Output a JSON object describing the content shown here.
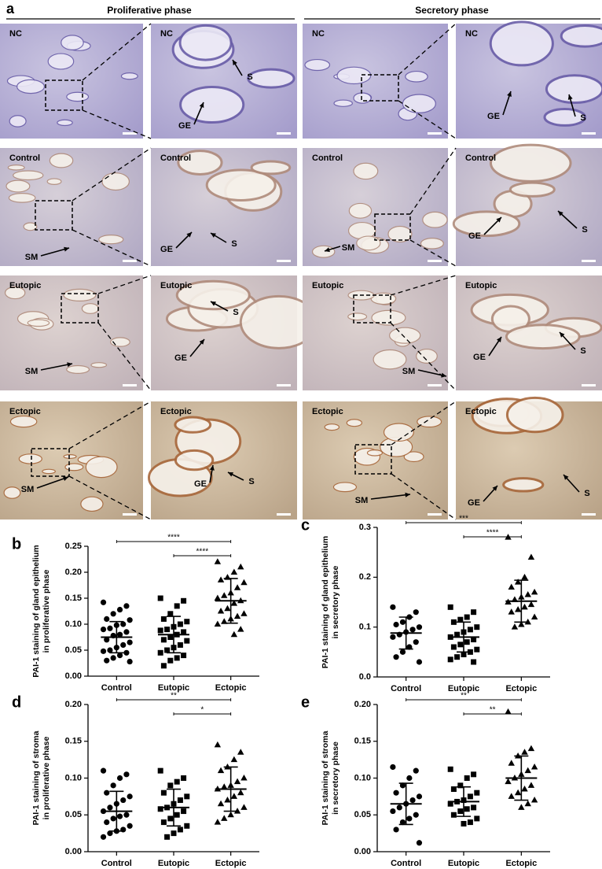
{
  "panel_a": {
    "label": "a",
    "phases": [
      "Proliferative phase",
      "Secretory phase"
    ],
    "rows": [
      "NC",
      "Control",
      "Eutopic",
      "Ectopic"
    ],
    "annotations": [
      "GE",
      "S",
      "SM"
    ]
  },
  "chart_data": [
    {
      "type": "dot",
      "panel": "b",
      "ylabel": [
        "PAI-1 staining of gland epithelium",
        "in proliferative phase"
      ],
      "categories": [
        "Control",
        "Eutopic",
        "Ectopic"
      ],
      "markers": [
        "circle",
        "square",
        "triangle"
      ],
      "color": "#000000",
      "points": [
        [
          0.142,
          0.135,
          0.128,
          0.12,
          0.11,
          0.108,
          0.1,
          0.098,
          0.092,
          0.09,
          0.085,
          0.08,
          0.078,
          0.07,
          0.065,
          0.06,
          0.055,
          0.05,
          0.048,
          0.045,
          0.04,
          0.035,
          0.03,
          0.028
        ],
        [
          0.15,
          0.145,
          0.135,
          0.12,
          0.11,
          0.105,
          0.1,
          0.095,
          0.09,
          0.088,
          0.085,
          0.08,
          0.075,
          0.07,
          0.068,
          0.06,
          0.055,
          0.05,
          0.045,
          0.04,
          0.035,
          0.03,
          0.02
        ],
        [
          0.22,
          0.21,
          0.2,
          0.19,
          0.185,
          0.18,
          0.17,
          0.16,
          0.155,
          0.15,
          0.145,
          0.14,
          0.13,
          0.125,
          0.12,
          0.115,
          0.11,
          0.105,
          0.1,
          0.09,
          0.08
        ]
      ],
      "means": [
        0.075,
        0.08,
        0.145
      ],
      "sds": [
        0.03,
        0.035,
        0.043
      ],
      "significance": [
        {
          "groups": [
            0,
            2
          ],
          "label": "****"
        },
        {
          "groups": [
            1,
            2
          ],
          "label": "****"
        }
      ],
      "ylim": [
        0,
        0.25
      ],
      "yticks": [
        {
          "value": 0,
          "label": "0.00"
        },
        {
          "value": 0.05,
          "label": "0.05"
        },
        {
          "value": 0.1,
          "label": "0.10"
        },
        {
          "value": 0.15,
          "label": "0.15"
        },
        {
          "value": 0.2,
          "label": "0.20"
        },
        {
          "value": 0.25,
          "label": "0.25"
        }
      ]
    },
    {
      "type": "dot",
      "panel": "c",
      "ylabel": [
        "PAI-1 staining of gland epithelium",
        "in secretory phase"
      ],
      "categories": [
        "Control",
        "Eutopic",
        "Ectopic"
      ],
      "markers": [
        "circle",
        "square",
        "triangle"
      ],
      "color": "#000000",
      "points": [
        [
          0.14,
          0.13,
          0.12,
          0.11,
          0.105,
          0.1,
          0.095,
          0.09,
          0.085,
          0.08,
          0.07,
          0.06,
          0.05,
          0.04,
          0.03
        ],
        [
          0.14,
          0.13,
          0.12,
          0.115,
          0.11,
          0.1,
          0.095,
          0.09,
          0.085,
          0.08,
          0.075,
          0.07,
          0.065,
          0.06,
          0.055,
          0.05,
          0.045,
          0.04,
          0.035,
          0.03
        ],
        [
          0.28,
          0.24,
          0.2,
          0.19,
          0.18,
          0.17,
          0.165,
          0.16,
          0.155,
          0.15,
          0.145,
          0.14,
          0.135,
          0.13,
          0.12,
          0.11,
          0.105,
          0.1
        ]
      ],
      "means": [
        0.088,
        0.08,
        0.152
      ],
      "sds": [
        0.032,
        0.03,
        0.042
      ],
      "significance": [
        {
          "groups": [
            0,
            2
          ],
          "label": "***"
        },
        {
          "groups": [
            1,
            2
          ],
          "label": "****"
        }
      ],
      "ylim": [
        0,
        0.3
      ],
      "yticks": [
        {
          "value": 0,
          "label": "0.0"
        },
        {
          "value": 0.1,
          "label": "0.1"
        },
        {
          "value": 0.2,
          "label": "0.2"
        },
        {
          "value": 0.3,
          "label": "0.3"
        }
      ]
    },
    {
      "type": "dot",
      "panel": "d",
      "ylabel": [
        "PAI-1 staining of stroma",
        "in proliferative phase"
      ],
      "categories": [
        "Control",
        "Eutopic",
        "Ectopic"
      ],
      "markers": [
        "circle",
        "square",
        "triangle"
      ],
      "color": "#000000",
      "points": [
        [
          0.11,
          0.105,
          0.1,
          0.09,
          0.08,
          0.075,
          0.07,
          0.065,
          0.06,
          0.055,
          0.05,
          0.048,
          0.045,
          0.04,
          0.035,
          0.03,
          0.028,
          0.025,
          0.02
        ],
        [
          0.11,
          0.1,
          0.095,
          0.09,
          0.08,
          0.075,
          0.07,
          0.065,
          0.06,
          0.058,
          0.055,
          0.05,
          0.045,
          0.04,
          0.035,
          0.03,
          0.025,
          0.02
        ],
        [
          0.145,
          0.135,
          0.125,
          0.115,
          0.11,
          0.1,
          0.095,
          0.09,
          0.088,
          0.085,
          0.08,
          0.075,
          0.07,
          0.065,
          0.06,
          0.055,
          0.05,
          0.045,
          0.04
        ]
      ],
      "means": [
        0.055,
        0.06,
        0.085
      ],
      "sds": [
        0.027,
        0.025,
        0.03
      ],
      "significance": [
        {
          "groups": [
            0,
            2
          ],
          "label": "**"
        },
        {
          "groups": [
            1,
            2
          ],
          "label": "*"
        }
      ],
      "ylim": [
        0,
        0.2
      ],
      "yticks": [
        {
          "value": 0,
          "label": "0.00"
        },
        {
          "value": 0.05,
          "label": "0.05"
        },
        {
          "value": 0.1,
          "label": "0.10"
        },
        {
          "value": 0.15,
          "label": "0.15"
        },
        {
          "value": 0.2,
          "label": "0.20"
        }
      ]
    },
    {
      "type": "dot",
      "panel": "e",
      "ylabel": [
        "PAI-1 staining of stroma",
        "in secretory phase"
      ],
      "categories": [
        "Control",
        "Eutopic",
        "Ectopic"
      ],
      "markers": [
        "circle",
        "square",
        "triangle"
      ],
      "color": "#000000",
      "points": [
        [
          0.115,
          0.11,
          0.1,
          0.09,
          0.08,
          0.075,
          0.07,
          0.065,
          0.06,
          0.055,
          0.05,
          0.045,
          0.04,
          0.03,
          0.012
        ],
        [
          0.112,
          0.105,
          0.1,
          0.09,
          0.085,
          0.08,
          0.075,
          0.07,
          0.068,
          0.065,
          0.06,
          0.058,
          0.055,
          0.05,
          0.045,
          0.04,
          0.038
        ],
        [
          0.19,
          0.14,
          0.135,
          0.13,
          0.12,
          0.115,
          0.11,
          0.105,
          0.1,
          0.095,
          0.09,
          0.085,
          0.08,
          0.075,
          0.07,
          0.065,
          0.06
        ]
      ],
      "means": [
        0.065,
        0.068,
        0.1
      ],
      "sds": [
        0.028,
        0.02,
        0.03
      ],
      "significance": [
        {
          "groups": [
            0,
            2
          ],
          "label": "**"
        },
        {
          "groups": [
            1,
            2
          ],
          "label": "**"
        }
      ],
      "ylim": [
        0,
        0.2
      ],
      "yticks": [
        {
          "value": 0,
          "label": "0.00"
        },
        {
          "value": 0.05,
          "label": "0.05"
        },
        {
          "value": 0.1,
          "label": "0.10"
        },
        {
          "value": 0.15,
          "label": "0.15"
        },
        {
          "value": 0.2,
          "label": "0.20"
        }
      ]
    }
  ]
}
